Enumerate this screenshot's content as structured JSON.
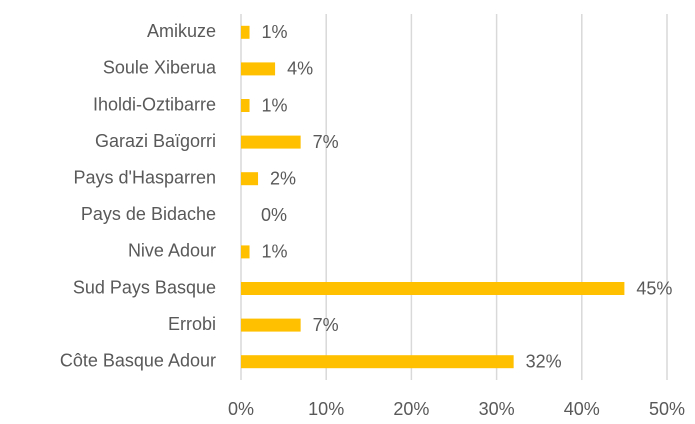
{
  "chart_data": {
    "type": "bar",
    "orientation": "horizontal",
    "categories": [
      "Amikuze",
      "Soule Xiberua",
      "Iholdi-Oztibarre",
      "Garazi Baïgorri",
      "Pays d'Hasparren",
      "Pays de Bidache",
      "Nive Adour",
      "Sud Pays Basque",
      "Errobi",
      "Côte Basque Adour"
    ],
    "values": [
      1,
      4,
      1,
      7,
      2,
      0,
      1,
      45,
      7,
      32
    ],
    "value_labels": [
      "1%",
      "4%",
      "1%",
      "7%",
      "2%",
      "0%",
      "1%",
      "45%",
      "7%",
      "32%"
    ],
    "color": "#ffc000",
    "xlim": [
      0,
      50
    ],
    "xticks": [
      {
        "value": 0,
        "label": "0%"
      },
      {
        "value": 10,
        "label": "10%"
      },
      {
        "value": 20,
        "label": "20%"
      },
      {
        "value": 30,
        "label": "30%"
      },
      {
        "value": 40,
        "label": "40%"
      },
      {
        "value": 50,
        "label": "50%"
      }
    ],
    "grid": true
  }
}
